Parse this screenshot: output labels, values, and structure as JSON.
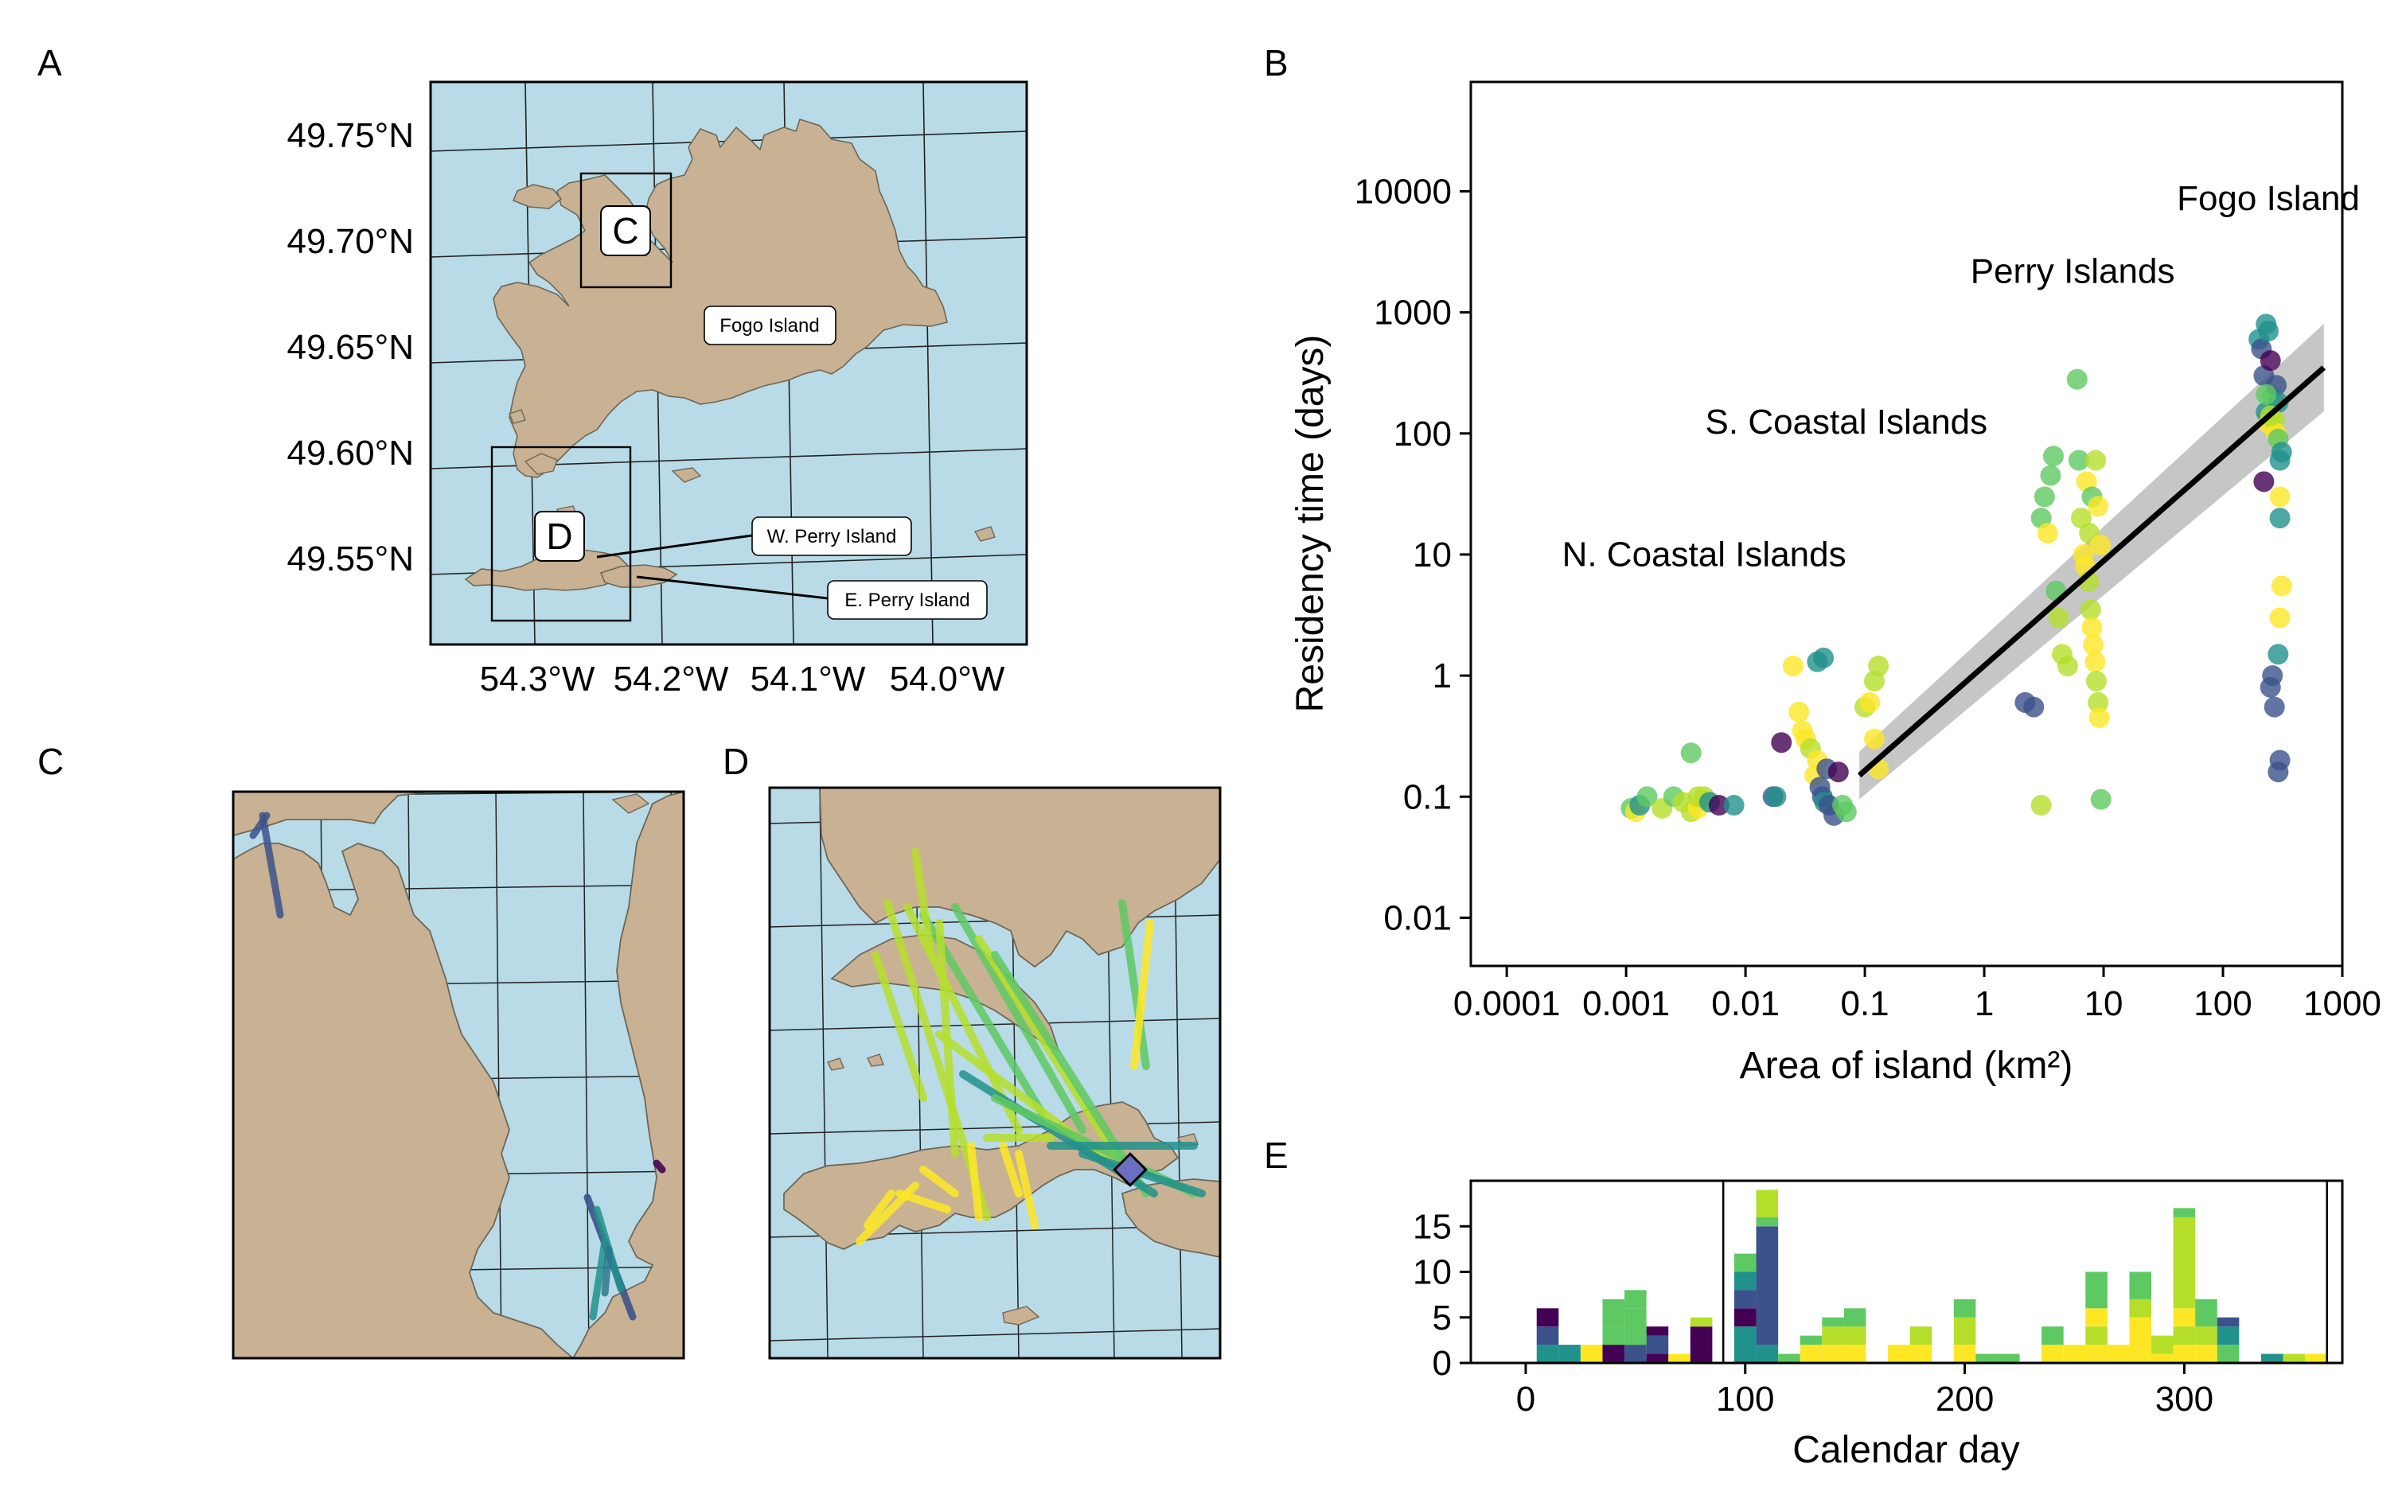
{
  "panels": {
    "a": "A",
    "b": "B",
    "c": "C",
    "d": "D",
    "e": "E"
  },
  "colors": {
    "sea": "#b8dbe7",
    "land": "#c8b293",
    "coast": "#6e6656",
    "fit": "#000000",
    "ci_band": "#b3b3b3",
    "viridis": [
      "#440154",
      "#3b528b",
      "#21918c",
      "#5ec962",
      "#b5de2b",
      "#fde725"
    ]
  },
  "map_a": {
    "lat_ticks": [
      "49.75°N",
      "49.70°N",
      "49.65°N",
      "49.60°N",
      "49.55°N"
    ],
    "lon_ticks": [
      "54.3°W",
      "54.2°W",
      "54.1°W",
      "54.0°W"
    ],
    "inset_labels": [
      "C",
      "D"
    ],
    "place_labels": [
      "Fogo Island",
      "W. Perry Island",
      "E. Perry Island"
    ]
  },
  "chart_data": [
    {
      "type": "scatter",
      "panel": "B",
      "xlabel": "Area of island (km²)",
      "ylabel": "Residency time (days)",
      "x_scale": "log",
      "y_scale": "log",
      "xlim": [
        5e-05,
        1000
      ],
      "ylim": [
        0.004,
        80000
      ],
      "x_ticks": [
        "0.0001",
        "0.001",
        "0.01",
        "0.1",
        "1",
        "10",
        "100",
        "1000"
      ],
      "x_tick_values": [
        0.0001,
        0.001,
        0.01,
        0.1,
        1,
        10,
        100,
        1000
      ],
      "y_ticks": [
        "0.01",
        "0.1",
        "1",
        "10",
        "100",
        "1000",
        "10000"
      ],
      "y_tick_values": [
        0.01,
        0.1,
        1,
        10,
        100,
        1000,
        10000
      ],
      "grid": false,
      "annotations": [
        {
          "text": "Fogo Island",
          "x": 240,
          "y": 7000
        },
        {
          "text": "Perry Islands",
          "x": 5.5,
          "y": 1750
        },
        {
          "text": "S. Coastal Islands",
          "x": 0.07,
          "y": 100
        },
        {
          "text": "N. Coastal Islands",
          "x": 0.0045,
          "y": 8
        }
      ],
      "fit": {
        "x": [
          0.09,
          700
        ],
        "y": [
          0.15,
          350
        ]
      },
      "points": [
        [
          0.0011,
          0.08,
          3
        ],
        [
          0.0012,
          0.075,
          5
        ],
        [
          0.0013,
          0.085,
          2
        ],
        [
          0.0015,
          0.1,
          3
        ],
        [
          0.002,
          0.08,
          4
        ],
        [
          0.0025,
          0.1,
          3
        ],
        [
          0.003,
          0.09,
          4
        ],
        [
          0.0035,
          0.075,
          4
        ],
        [
          0.004,
          0.08,
          5
        ],
        [
          0.0035,
          0.23,
          3
        ],
        [
          0.004,
          0.1,
          4
        ],
        [
          0.0045,
          0.1,
          4
        ],
        [
          0.005,
          0.09,
          2
        ],
        [
          0.006,
          0.085,
          0
        ],
        [
          0.008,
          0.085,
          2
        ],
        [
          0.017,
          0.1,
          1
        ],
        [
          0.018,
          0.1,
          2
        ],
        [
          0.02,
          0.28,
          0
        ],
        [
          0.025,
          1.2,
          5
        ],
        [
          0.028,
          0.5,
          5
        ],
        [
          0.03,
          0.35,
          5
        ],
        [
          0.032,
          0.3,
          5
        ],
        [
          0.035,
          0.25,
          4
        ],
        [
          0.04,
          0.2,
          5
        ],
        [
          0.038,
          0.15,
          5
        ],
        [
          0.042,
          0.12,
          1
        ],
        [
          0.044,
          0.1,
          1
        ],
        [
          0.046,
          0.09,
          2
        ],
        [
          0.05,
          0.085,
          1
        ],
        [
          0.055,
          0.07,
          1
        ],
        [
          0.04,
          1.3,
          2
        ],
        [
          0.045,
          1.4,
          2
        ],
        [
          0.048,
          0.17,
          1
        ],
        [
          0.06,
          0.16,
          0
        ],
        [
          0.065,
          0.085,
          3
        ],
        [
          0.07,
          0.075,
          3
        ],
        [
          0.1,
          0.55,
          4
        ],
        [
          0.11,
          0.6,
          5
        ],
        [
          0.12,
          0.9,
          4
        ],
        [
          0.13,
          1.2,
          4
        ],
        [
          0.12,
          0.3,
          5
        ],
        [
          0.13,
          0.17,
          5
        ],
        [
          2.2,
          0.6,
          1
        ],
        [
          2.6,
          0.55,
          1
        ],
        [
          3,
          0.085,
          4
        ],
        [
          3,
          20,
          3
        ],
        [
          3.2,
          30,
          3
        ],
        [
          3.4,
          15,
          5
        ],
        [
          3.6,
          45,
          3
        ],
        [
          3.8,
          65,
          3
        ],
        [
          4,
          5,
          3
        ],
        [
          4.2,
          3,
          4
        ],
        [
          4.5,
          1.5,
          4
        ],
        [
          5,
          1.2,
          4
        ],
        [
          6,
          280,
          3
        ],
        [
          6.2,
          60,
          3
        ],
        [
          6.5,
          20,
          4
        ],
        [
          6.8,
          10,
          5
        ],
        [
          7,
          8,
          5
        ],
        [
          7.5,
          6,
          4
        ],
        [
          7.8,
          3.5,
          4
        ],
        [
          8,
          2.5,
          5
        ],
        [
          8.2,
          1.8,
          5
        ],
        [
          8.5,
          1.3,
          5
        ],
        [
          8.7,
          0.9,
          4
        ],
        [
          9,
          0.6,
          4
        ],
        [
          9.2,
          0.45,
          5
        ],
        [
          9.5,
          0.095,
          3
        ],
        [
          7.2,
          40,
          5
        ],
        [
          7.6,
          15,
          4
        ],
        [
          8,
          30,
          3
        ],
        [
          8.6,
          60,
          4
        ],
        [
          9,
          25,
          5
        ],
        [
          9.4,
          12,
          5
        ],
        [
          200,
          600,
          2
        ],
        [
          210,
          500,
          1
        ],
        [
          220,
          300,
          1
        ],
        [
          230,
          150,
          2
        ],
        [
          240,
          120,
          5
        ],
        [
          250,
          0.8,
          1
        ],
        [
          260,
          1,
          1
        ],
        [
          270,
          0.55,
          1
        ],
        [
          220,
          40,
          0
        ],
        [
          230,
          800,
          2
        ],
        [
          240,
          700,
          2
        ],
        [
          250,
          400,
          0
        ],
        [
          260,
          200,
          3
        ],
        [
          270,
          130,
          4
        ],
        [
          280,
          100,
          5
        ],
        [
          290,
          90,
          3
        ],
        [
          300,
          60,
          2
        ],
        [
          300,
          20,
          2
        ],
        [
          300,
          30,
          5
        ],
        [
          310,
          5.5,
          5
        ],
        [
          300,
          3,
          5
        ],
        [
          290,
          1.5,
          2
        ],
        [
          300,
          0.2,
          1
        ],
        [
          290,
          0.16,
          1
        ],
        [
          280,
          250,
          1
        ],
        [
          290,
          180,
          2
        ],
        [
          310,
          70,
          2
        ],
        [
          250,
          140,
          4
        ],
        [
          230,
          210,
          3
        ]
      ]
    },
    {
      "type": "bar",
      "panel": "E",
      "stacked": true,
      "xlabel": "Calendar day",
      "ylabel": "",
      "xlim": [
        -25,
        372
      ],
      "ylim": [
        0,
        20
      ],
      "x_ticks": [
        "0",
        "100",
        "200",
        "300"
      ],
      "x_tick_values": [
        0,
        100,
        200,
        300
      ],
      "y_ticks": [
        "0",
        "5",
        "10",
        "15"
      ],
      "y_tick_values": [
        0,
        5,
        10,
        15
      ],
      "vlines": [
        90,
        365
      ],
      "bin_width": 10,
      "bars": [
        {
          "start": 5,
          "stack": [
            [
              2,
              2
            ],
            [
              1,
              2
            ],
            [
              0,
              2
            ]
          ]
        },
        {
          "start": 15,
          "stack": [
            [
              2,
              2
            ]
          ]
        },
        {
          "start": 25,
          "stack": [
            [
              5,
              2
            ]
          ]
        },
        {
          "start": 35,
          "stack": [
            [
              0,
              2
            ],
            [
              3,
              2
            ],
            [
              3,
              3
            ]
          ]
        },
        {
          "start": 45,
          "stack": [
            [
              1,
              2
            ],
            [
              3,
              4
            ],
            [
              3,
              2
            ]
          ]
        },
        {
          "start": 55,
          "stack": [
            [
              0,
              1
            ],
            [
              1,
              2
            ],
            [
              0,
              1
            ]
          ]
        },
        {
          "start": 65,
          "stack": [
            [
              5,
              1
            ]
          ]
        },
        {
          "start": 75,
          "stack": [
            [
              0,
              4
            ],
            [
              4,
              1
            ]
          ]
        },
        {
          "start": 95,
          "stack": [
            [
              2,
              4
            ],
            [
              0,
              2
            ],
            [
              1,
              2
            ],
            [
              2,
              2
            ],
            [
              3,
              2
            ]
          ]
        },
        {
          "start": 105,
          "stack": [
            [
              2,
              2
            ],
            [
              1,
              13
            ],
            [
              3,
              1
            ],
            [
              4,
              3
            ]
          ]
        },
        {
          "start": 115,
          "stack": [
            [
              3,
              1
            ]
          ]
        },
        {
          "start": 125,
          "stack": [
            [
              5,
              2
            ],
            [
              3,
              1
            ]
          ]
        },
        {
          "start": 135,
          "stack": [
            [
              5,
              2
            ],
            [
              4,
              2
            ],
            [
              3,
              1
            ]
          ]
        },
        {
          "start": 145,
          "stack": [
            [
              5,
              2
            ],
            [
              4,
              2
            ],
            [
              3,
              2
            ]
          ]
        },
        {
          "start": 165,
          "stack": [
            [
              5,
              2
            ]
          ]
        },
        {
          "start": 175,
          "stack": [
            [
              5,
              2
            ],
            [
              4,
              2
            ]
          ]
        },
        {
          "start": 195,
          "stack": [
            [
              5,
              2
            ],
            [
              4,
              3
            ],
            [
              3,
              2
            ]
          ]
        },
        {
          "start": 205,
          "stack": [
            [
              3,
              1
            ]
          ]
        },
        {
          "start": 215,
          "stack": [
            [
              3,
              1
            ]
          ]
        },
        {
          "start": 235,
          "stack": [
            [
              5,
              2
            ],
            [
              3,
              2
            ]
          ]
        },
        {
          "start": 245,
          "stack": [
            [
              5,
              2
            ]
          ]
        },
        {
          "start": 255,
          "stack": [
            [
              5,
              2
            ],
            [
              4,
              2
            ],
            [
              5,
              2
            ],
            [
              3,
              4
            ]
          ]
        },
        {
          "start": 265,
          "stack": [
            [
              5,
              2
            ]
          ]
        },
        {
          "start": 275,
          "stack": [
            [
              5,
              5
            ],
            [
              4,
              2
            ],
            [
              3,
              3
            ],
            [
              5,
              0
            ]
          ]
        },
        {
          "start": 285,
          "stack": [
            [
              5,
              1
            ],
            [
              4,
              2
            ]
          ]
        },
        {
          "start": 295,
          "stack": [
            [
              5,
              2
            ],
            [
              4,
              2
            ],
            [
              5,
              2
            ],
            [
              4,
              10
            ],
            [
              3,
              1
            ]
          ]
        },
        {
          "start": 305,
          "stack": [
            [
              5,
              2
            ],
            [
              4,
              2
            ],
            [
              3,
              3
            ]
          ]
        },
        {
          "start": 315,
          "stack": [
            [
              3,
              2
            ],
            [
              2,
              2
            ],
            [
              1,
              1
            ]
          ]
        },
        {
          "start": 335,
          "stack": [
            [
              2,
              1
            ]
          ]
        },
        {
          "start": 345,
          "stack": [
            [
              4,
              1
            ]
          ]
        },
        {
          "start": 355,
          "stack": [
            [
              5,
              1
            ]
          ]
        }
      ]
    }
  ]
}
